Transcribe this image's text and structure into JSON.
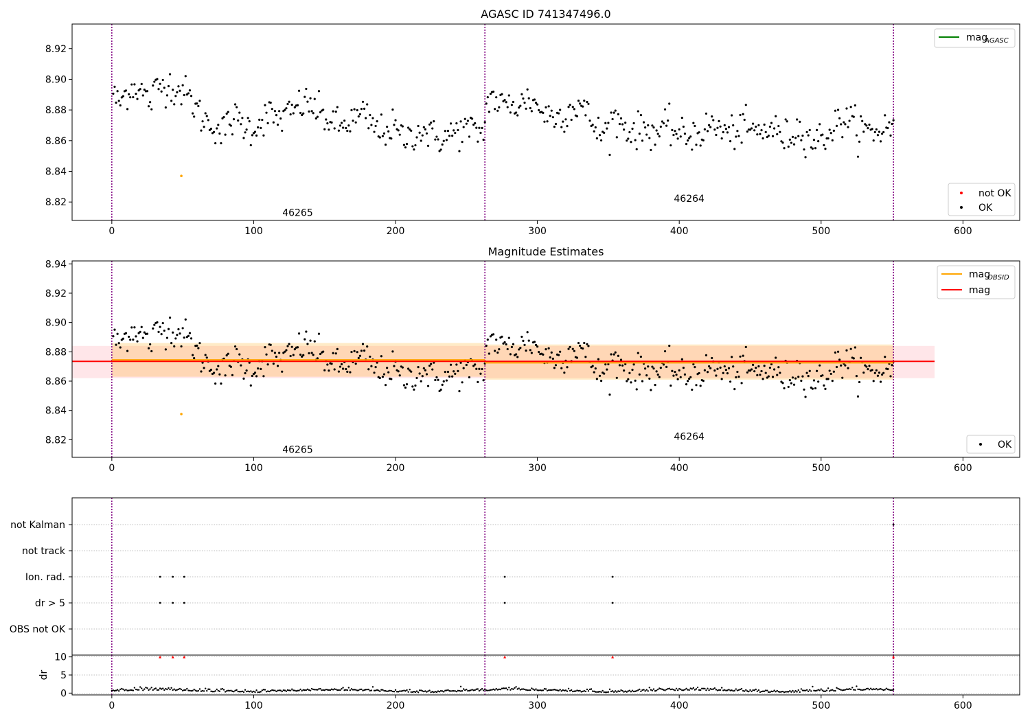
{
  "chart_data": [
    {
      "type": "scatter",
      "title": "AGASC ID 741347496.0",
      "xlim": [
        -28,
        640
      ],
      "ylim": [
        8.808,
        8.936
      ],
      "xticks": [
        0,
        100,
        200,
        300,
        400,
        500,
        600
      ],
      "yticks": [
        8.82,
        8.84,
        8.86,
        8.88,
        8.9,
        8.92
      ],
      "vlines": [
        0,
        263,
        551
      ],
      "annotations": [
        {
          "text": "46265",
          "x": 131,
          "y": 8.811
        },
        {
          "text": "46264",
          "x": 407,
          "y": 8.82
        }
      ],
      "legends": [
        {
          "placement": "top-right",
          "entries": [
            {
              "type": "line",
              "color": "#008000",
              "label": "mag",
              "sub": "AGASC"
            }
          ]
        },
        {
          "placement": "bottom-right",
          "entries": [
            {
              "type": "marker",
              "color": "#ff0000",
              "label": "not OK"
            },
            {
              "type": "marker",
              "color": "#000000",
              "label": "OK"
            }
          ]
        }
      ],
      "series": [
        {
          "name": "OK",
          "color": "#000000",
          "generated_from": "segments"
        },
        {
          "name": "not OK",
          "color": "#ff0000",
          "x": [],
          "y": []
        }
      ],
      "highlight_points": [
        {
          "x": 49,
          "y": 8.837,
          "color": "#ffa500"
        }
      ]
    },
    {
      "type": "scatter",
      "title": "Magnitude Estimates",
      "xlim": [
        -28,
        640
      ],
      "ylim": [
        8.808,
        8.942
      ],
      "xticks": [
        0,
        100,
        200,
        300,
        400,
        500,
        600
      ],
      "yticks": [
        8.82,
        8.84,
        8.86,
        8.88,
        8.9,
        8.92,
        8.94
      ],
      "vlines": [
        0,
        263,
        551
      ],
      "bands": [
        {
          "x0": -28,
          "x1": 580,
          "y0": 8.862,
          "y1": 8.884,
          "color": "#ffb6c1",
          "opacity": 0.35
        },
        {
          "x0": 0,
          "x1": 263,
          "y0": 8.863,
          "y1": 8.886,
          "color": "#ffa500",
          "opacity": 0.22
        },
        {
          "x0": 263,
          "x1": 551,
          "y0": 8.861,
          "y1": 8.885,
          "color": "#ffa500",
          "opacity": 0.22
        }
      ],
      "hlines": [
        {
          "name": "mag_OBSID",
          "x0": 0,
          "x1": 263,
          "y": 8.8745,
          "color": "#ffa500"
        },
        {
          "name": "mag_OBSID",
          "x0": 263,
          "x1": 551,
          "y": 8.8725,
          "color": "#ffa500"
        },
        {
          "name": "mag",
          "x0": -28,
          "x1": 580,
          "y": 8.8735,
          "color": "#ff0000"
        }
      ],
      "annotations": [
        {
          "text": "46265",
          "x": 131,
          "y": 8.811
        },
        {
          "text": "46264",
          "x": 407,
          "y": 8.82
        }
      ],
      "legends": [
        {
          "placement": "top-right",
          "entries": [
            {
              "type": "line",
              "color": "#ffa500",
              "label": "mag",
              "sub": "OBSID"
            },
            {
              "type": "line",
              "color": "#ff0000",
              "label": "mag"
            }
          ]
        },
        {
          "placement": "bottom-right",
          "entries": [
            {
              "type": "marker",
              "color": "#000000",
              "label": "OK"
            }
          ]
        }
      ],
      "highlight_points": [
        {
          "x": 49,
          "y": 8.8375,
          "color": "#ffa500"
        }
      ]
    },
    {
      "type": "scatter",
      "xlim": [
        -28,
        640
      ],
      "xticks": [
        0,
        100,
        200,
        300,
        400,
        500,
        600
      ],
      "vlines": [
        0,
        263,
        551
      ],
      "flag_labels": [
        "not Kalman",
        "not track",
        "Ion. rad.",
        "dr > 5",
        "OBS not OK"
      ],
      "flags": {
        "not Kalman": [
          551
        ],
        "not track": [],
        "Ion. rad.": [
          34,
          43,
          51,
          277,
          353
        ],
        "dr > 5": [
          34,
          43,
          51,
          277,
          353
        ],
        "OBS not OK": []
      }
    },
    {
      "type": "scatter",
      "ylabel": "dr",
      "xlim": [
        -28,
        640
      ],
      "ylim": [
        -0.5,
        10.5
      ],
      "yticks": [
        0,
        5,
        10
      ],
      "xticks": [
        0,
        100,
        200,
        300,
        400,
        500,
        600
      ],
      "vlines": [
        0,
        263,
        551
      ],
      "red_points": [
        {
          "x": 34,
          "y": 10
        },
        {
          "x": 43,
          "y": 10
        },
        {
          "x": 51,
          "y": 10
        },
        {
          "x": 277,
          "y": 10
        },
        {
          "x": 353,
          "y": 10
        },
        {
          "x": 551,
          "y": 10
        }
      ],
      "outliers": [
        {
          "x": 246,
          "y": 1.8
        }
      ],
      "baseline": {
        "start": 0,
        "end": 551,
        "level": 0.5
      }
    }
  ],
  "mag_segments": [
    {
      "x0": 0,
      "x1": 263,
      "ys": [
        8.895,
        8.883,
        8.89,
        8.895,
        8.895,
        8.89,
        8.885,
        8.895,
        8.896,
        8.897,
        8.893,
        8.893,
        8.888,
        8.882,
        8.875,
        8.872,
        8.87,
        8.865,
        8.87,
        8.875,
        8.872,
        8.869,
        8.868,
        8.872,
        8.877,
        8.876,
        8.874,
        8.876,
        8.878,
        8.883,
        8.884,
        8.883,
        8.879,
        8.875,
        8.873,
        8.87,
        8.869,
        8.873,
        8.874,
        8.877,
        8.873,
        8.867,
        8.866,
        8.868,
        8.868,
        8.862,
        8.862,
        8.865,
        8.867,
        8.866,
        8.862,
        8.862,
        8.862,
        8.865,
        8.866,
        8.868,
        8.866,
        8.866,
        8.866
      ]
    },
    {
      "x0": 263,
      "x1": 551,
      "ys": [
        8.887,
        8.889,
        8.884,
        8.882,
        8.885,
        8.882,
        8.887,
        8.886,
        8.881,
        8.877,
        8.876,
        8.876,
        8.879,
        8.882,
        8.884,
        8.877,
        8.87,
        8.863,
        8.868,
        8.875,
        8.872,
        8.867,
        8.866,
        8.867,
        8.868,
        8.865,
        8.866,
        8.869,
        8.866,
        8.862,
        8.863,
        8.866,
        8.865,
        8.87,
        8.869,
        8.866,
        8.864,
        8.867,
        8.868,
        8.867,
        8.865,
        8.866,
        8.869,
        8.865,
        8.862,
        8.864,
        8.868,
        8.866,
        8.86,
        8.861,
        8.863,
        8.868,
        8.872,
        8.875,
        8.871,
        8.868,
        8.866,
        8.866,
        8.866,
        8.87,
        8.868
      ]
    }
  ],
  "noise_amp": 0.0075
}
